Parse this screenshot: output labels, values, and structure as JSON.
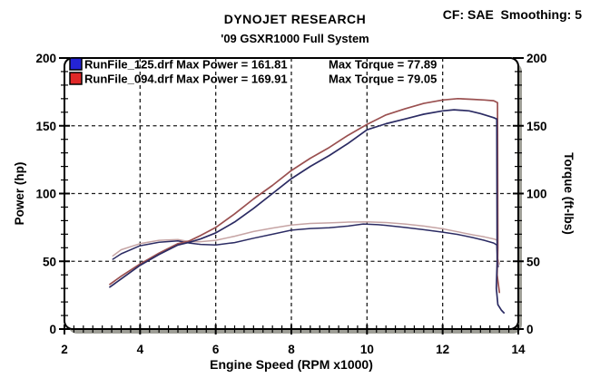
{
  "header": {
    "title": "DYNOJET RESEARCH",
    "subtitle": "'09 GSXR1000 Full System",
    "correction": "CF: SAE  Smoothing: 5"
  },
  "chart_data": {
    "type": "line",
    "title": "DYNOJET RESEARCH",
    "subtitle": "'09 GSXR1000 Full System",
    "correction_factor": "SAE",
    "smoothing": "5",
    "xlabel": "Engine Speed (RPM x1000)",
    "ylabel_left": "Power (hp)",
    "ylabel_right": "Torque (ft-lbs)",
    "xlim": [
      2,
      14
    ],
    "ylim": [
      0,
      200
    ],
    "x_major_ticks": [
      2,
      4,
      6,
      8,
      10,
      12,
      14
    ],
    "y_major_ticks": [
      0,
      50,
      100,
      150,
      200
    ],
    "x_minor_step": 0.25,
    "y_minor_step": 10,
    "grid_x": [
      4,
      6,
      8,
      10,
      12
    ],
    "grid_y": [
      50,
      100,
      150
    ],
    "grid_on": true,
    "legend_position": "top-left-inside",
    "legend": [
      {
        "file": "RunFile_125.drf",
        "max_power": 161.81,
        "max_torque": 77.89,
        "swatch": "#2424d6",
        "label_left": "RunFile_125.drf Max Power = 161.81",
        "label_right": "Max Torque = 77.89"
      },
      {
        "file": "RunFile_094.drf",
        "max_power": 169.91,
        "max_torque": 79.05,
        "swatch": "#e02828",
        "label_left": "RunFile_094.drf Max Power = 169.91",
        "label_right": "Max Torque = 79.05"
      }
    ],
    "series": [
      {
        "name": "runfile-094-torque",
        "unit": "ft-lbs",
        "color": "#c6a4a4",
        "width": 1.5,
        "points": [
          [
            3.28,
            54
          ],
          [
            3.5,
            58.5
          ],
          [
            4,
            63
          ],
          [
            4.5,
            65.5
          ],
          [
            5,
            66
          ],
          [
            5.3,
            64.5
          ],
          [
            5.6,
            64.5
          ],
          [
            6,
            65.5
          ],
          [
            6.5,
            68.5
          ],
          [
            7,
            72
          ],
          [
            7.5,
            74.5
          ],
          [
            8,
            76.8
          ],
          [
            8.5,
            77.9
          ],
          [
            9,
            78.3
          ],
          [
            9.5,
            78.9
          ],
          [
            10,
            79.05
          ],
          [
            10.5,
            78.6
          ],
          [
            11,
            77.5
          ],
          [
            11.5,
            76
          ],
          [
            12,
            74
          ],
          [
            12.4,
            71.8
          ],
          [
            12.8,
            69.5
          ],
          [
            13.1,
            68
          ],
          [
            13.35,
            66.5
          ],
          [
            13.45,
            65.5
          ],
          [
            13.46,
            52
          ],
          [
            13.5,
            48
          ]
        ]
      },
      {
        "name": "runfile-125-torque",
        "unit": "ft-lbs",
        "color": "#2b2b63",
        "width": 1.5,
        "points": [
          [
            3.28,
            51.5
          ],
          [
            3.5,
            55.5
          ],
          [
            4,
            61.5
          ],
          [
            4.5,
            64
          ],
          [
            5,
            65
          ],
          [
            5.3,
            63.5
          ],
          [
            5.6,
            62.5
          ],
          [
            6,
            62
          ],
          [
            6.5,
            63.8
          ],
          [
            7,
            67
          ],
          [
            7.5,
            70
          ],
          [
            8,
            73
          ],
          [
            8.5,
            74.2
          ],
          [
            9,
            74.8
          ],
          [
            9.5,
            76
          ],
          [
            9.9,
            77.5
          ],
          [
            10.3,
            77
          ],
          [
            10.5,
            76.5
          ],
          [
            11,
            75
          ],
          [
            11.5,
            73.3
          ],
          [
            12,
            71.5
          ],
          [
            12.4,
            69.8
          ],
          [
            12.8,
            67.5
          ],
          [
            13.1,
            65.5
          ],
          [
            13.35,
            63.5
          ],
          [
            13.43,
            62
          ],
          [
            13.45,
            50
          ],
          [
            13.47,
            46
          ]
        ]
      },
      {
        "name": "runfile-094-power",
        "unit": "hp",
        "color": "#9a5050",
        "width": 1.7,
        "points": [
          [
            3.2,
            33
          ],
          [
            3.5,
            39
          ],
          [
            4,
            48
          ],
          [
            4.5,
            56
          ],
          [
            5,
            63
          ],
          [
            5.3,
            65
          ],
          [
            5.6,
            69
          ],
          [
            6,
            75
          ],
          [
            6.5,
            85
          ],
          [
            7,
            96
          ],
          [
            7.5,
            106
          ],
          [
            8,
            117
          ],
          [
            8.5,
            126
          ],
          [
            9,
            134
          ],
          [
            9.5,
            143
          ],
          [
            10,
            151
          ],
          [
            10.5,
            158
          ],
          [
            11,
            162.5
          ],
          [
            11.5,
            166.5
          ],
          [
            12,
            169
          ],
          [
            12.4,
            170
          ],
          [
            12.8,
            169.5
          ],
          [
            13.1,
            169
          ],
          [
            13.35,
            168.5
          ],
          [
            13.45,
            167
          ],
          [
            13.46,
            60
          ],
          [
            13.44,
            40
          ],
          [
            13.5,
            27
          ]
        ]
      },
      {
        "name": "runfile-125-power",
        "unit": "hp",
        "color": "#2b2b63",
        "width": 1.7,
        "points": [
          [
            3.2,
            31
          ],
          [
            3.5,
            37
          ],
          [
            4,
            47
          ],
          [
            4.5,
            55
          ],
          [
            5,
            62
          ],
          [
            5.3,
            64
          ],
          [
            5.6,
            66.5
          ],
          [
            6,
            71
          ],
          [
            6.5,
            79
          ],
          [
            7,
            89
          ],
          [
            7.5,
            100
          ],
          [
            8,
            111
          ],
          [
            8.5,
            120
          ],
          [
            9,
            128
          ],
          [
            9.5,
            137
          ],
          [
            10,
            147
          ],
          [
            10.5,
            151.5
          ],
          [
            11,
            155
          ],
          [
            11.5,
            158.5
          ],
          [
            12,
            161
          ],
          [
            12.3,
            161.8
          ],
          [
            12.7,
            161
          ],
          [
            13,
            159
          ],
          [
            13.35,
            156
          ],
          [
            13.43,
            155
          ],
          [
            13.44,
            50
          ],
          [
            13.42,
            30
          ],
          [
            13.46,
            18
          ],
          [
            13.55,
            14
          ],
          [
            13.62,
            12
          ]
        ]
      }
    ],
    "frame_color": "#000000",
    "shadow_color": "#9e9e96",
    "grid_color": "#1c1c1c"
  }
}
